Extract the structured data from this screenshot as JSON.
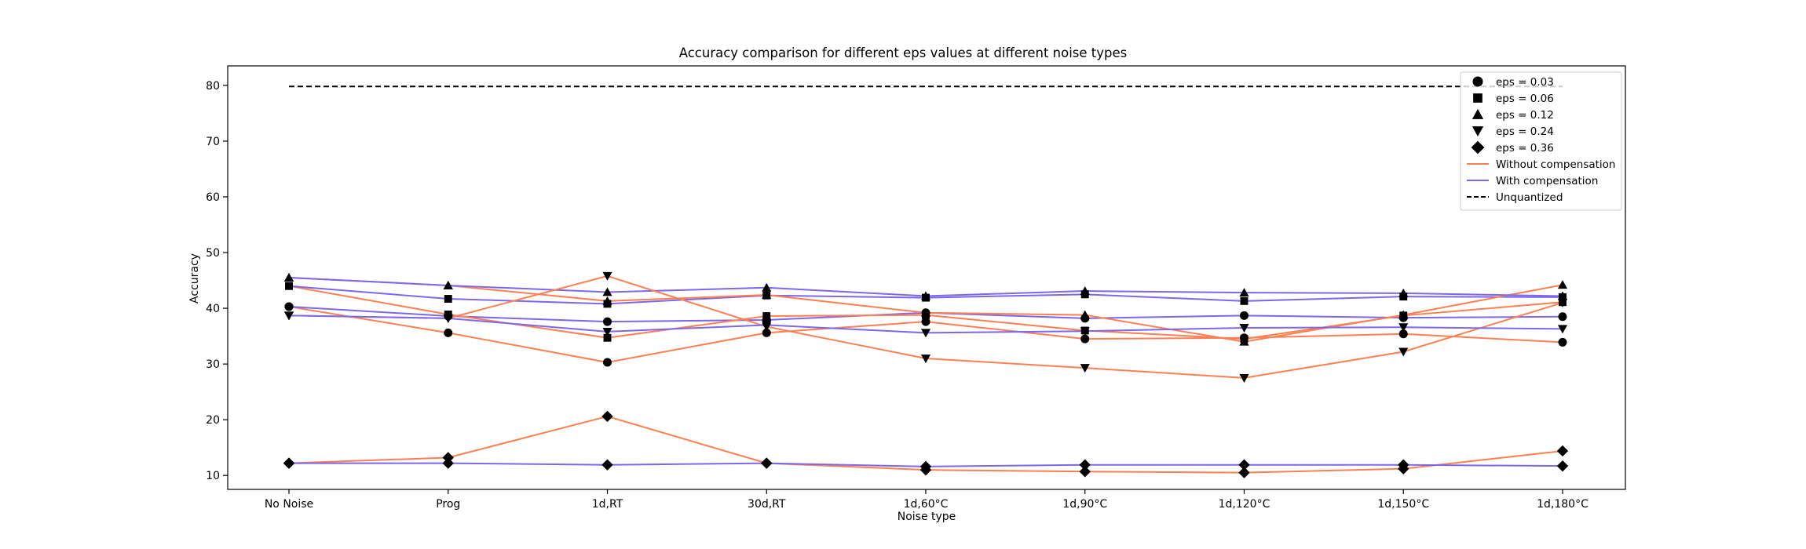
{
  "chart_data": {
    "type": "line",
    "title": "Accuracy comparison for different eps values at different noise types",
    "xlabel": "Noise type",
    "ylabel": "Accuracy",
    "categories": [
      "No Noise",
      "Prog",
      "1d,RT",
      "30d,RT",
      "1d,60°C",
      "1d,90°C",
      "1d,120°C",
      "1d,150°C",
      "1d,180°C"
    ],
    "ylim": [
      7.5,
      83.5
    ],
    "yticks": [
      10,
      20,
      30,
      40,
      50,
      60,
      70,
      80
    ],
    "grid": false,
    "legend_position": "top-right",
    "colors": {
      "without_compensation": "#ff7f50",
      "with_compensation": "#7b68ee",
      "unquantized": "#000000",
      "markers": "#000000"
    },
    "legend": [
      {
        "label": "eps = 0.03",
        "marker": "circle",
        "line": "none"
      },
      {
        "label": "eps = 0.06",
        "marker": "square",
        "line": "none"
      },
      {
        "label": "eps = 0.12",
        "marker": "triangle-up",
        "line": "none"
      },
      {
        "label": "eps = 0.24",
        "marker": "triangle-down",
        "line": "none"
      },
      {
        "label": "eps = 0.36",
        "marker": "diamond",
        "line": "none"
      },
      {
        "label": "Without compensation",
        "marker": "none",
        "line": "without"
      },
      {
        "label": "With compensation",
        "marker": "none",
        "line": "with"
      },
      {
        "label": "Unquantized",
        "marker": "none",
        "line": "dashed"
      }
    ],
    "unquantized": 79.8,
    "series": [
      {
        "eps": "0.03",
        "marker": "circle",
        "compensation": "without",
        "values": [
          40.3,
          35.6,
          30.3,
          35.6,
          37.6,
          34.5,
          34.7,
          35.4,
          33.9
        ]
      },
      {
        "eps": "0.03",
        "marker": "circle",
        "compensation": "with",
        "values": [
          40.3,
          38.6,
          37.6,
          37.9,
          39.2,
          38.2,
          38.7,
          38.3,
          38.5
        ]
      },
      {
        "eps": "0.06",
        "marker": "square",
        "compensation": "without",
        "values": [
          44.0,
          38.9,
          34.7,
          38.6,
          38.8,
          36.0,
          34.5,
          38.7,
          41.1
        ]
      },
      {
        "eps": "0.06",
        "marker": "square",
        "compensation": "with",
        "values": [
          44.0,
          41.7,
          40.8,
          42.3,
          41.9,
          42.5,
          41.3,
          42.1,
          42.0
        ]
      },
      {
        "eps": "0.12",
        "marker": "triangle-up",
        "compensation": "without",
        "values": [
          45.5,
          44.1,
          41.3,
          42.4,
          39.2,
          38.8,
          34.0,
          38.8,
          44.2
        ]
      },
      {
        "eps": "0.12",
        "marker": "triangle-up",
        "compensation": "with",
        "values": [
          45.5,
          44.1,
          42.9,
          43.7,
          42.2,
          43.1,
          42.8,
          42.7,
          42.2
        ]
      },
      {
        "eps": "0.24",
        "marker": "triangle-down",
        "compensation": "without",
        "values": [
          38.7,
          38.2,
          45.8,
          36.7,
          31.0,
          29.3,
          27.5,
          32.2,
          41.0
        ]
      },
      {
        "eps": "0.24",
        "marker": "triangle-down",
        "compensation": "with",
        "values": [
          38.7,
          38.2,
          35.8,
          37.0,
          35.6,
          35.9,
          36.5,
          36.6,
          36.3
        ]
      },
      {
        "eps": "0.36",
        "marker": "diamond",
        "compensation": "without",
        "values": [
          12.2,
          13.2,
          20.6,
          12.2,
          11.0,
          10.7,
          10.5,
          11.2,
          14.4
        ]
      },
      {
        "eps": "0.36",
        "marker": "diamond",
        "compensation": "with",
        "values": [
          12.2,
          12.2,
          11.9,
          12.2,
          11.6,
          11.9,
          11.9,
          11.9,
          11.7
        ]
      }
    ]
  }
}
